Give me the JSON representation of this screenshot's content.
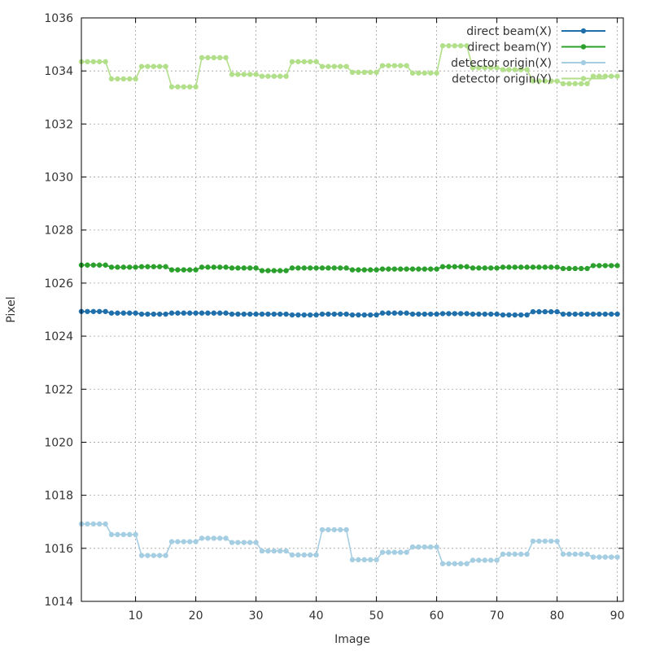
{
  "chart_data": {
    "type": "line",
    "xlabel": "Image",
    "ylabel": "Pixel",
    "xlim": [
      1,
      91
    ],
    "ylim": [
      1014,
      1036
    ],
    "x_ticks": [
      10,
      20,
      30,
      40,
      50,
      60,
      70,
      80,
      90
    ],
    "y_ticks": [
      1014,
      1016,
      1018,
      1020,
      1022,
      1024,
      1026,
      1028,
      1030,
      1032,
      1034,
      1036
    ],
    "grid": true,
    "legend_position": "top-right",
    "x": [
      1,
      2,
      3,
      4,
      5,
      6,
      7,
      8,
      9,
      10,
      11,
      12,
      13,
      14,
      15,
      16,
      17,
      18,
      19,
      20,
      21,
      22,
      23,
      24,
      25,
      26,
      27,
      28,
      29,
      30,
      31,
      32,
      33,
      34,
      35,
      36,
      37,
      38,
      39,
      40,
      41,
      42,
      43,
      44,
      45,
      46,
      47,
      48,
      49,
      50,
      51,
      52,
      53,
      54,
      55,
      56,
      57,
      58,
      59,
      60,
      61,
      62,
      63,
      64,
      65,
      66,
      67,
      68,
      69,
      70,
      71,
      72,
      73,
      74,
      75,
      76,
      77,
      78,
      79,
      80,
      81,
      82,
      83,
      84,
      85,
      86,
      87,
      88,
      89,
      90
    ],
    "series": [
      {
        "name": "direct beam(X)",
        "color": "#1f6fab",
        "values": [
          1024.93,
          1024.93,
          1024.93,
          1024.93,
          1024.93,
          1024.87,
          1024.87,
          1024.87,
          1024.87,
          1024.87,
          1024.83,
          1024.83,
          1024.83,
          1024.83,
          1024.83,
          1024.87,
          1024.87,
          1024.87,
          1024.87,
          1024.87,
          1024.87,
          1024.87,
          1024.87,
          1024.87,
          1024.87,
          1024.83,
          1024.83,
          1024.83,
          1024.83,
          1024.83,
          1024.83,
          1024.83,
          1024.83,
          1024.83,
          1024.83,
          1024.8,
          1024.8,
          1024.8,
          1024.8,
          1024.8,
          1024.83,
          1024.83,
          1024.83,
          1024.83,
          1024.83,
          1024.8,
          1024.8,
          1024.8,
          1024.8,
          1024.8,
          1024.87,
          1024.87,
          1024.87,
          1024.87,
          1024.87,
          1024.83,
          1024.83,
          1024.83,
          1024.83,
          1024.83,
          1024.85,
          1024.85,
          1024.85,
          1024.85,
          1024.85,
          1024.83,
          1024.83,
          1024.83,
          1024.83,
          1024.83,
          1024.8,
          1024.8,
          1024.8,
          1024.8,
          1024.8,
          1024.92,
          1024.92,
          1024.92,
          1024.92,
          1024.92,
          1024.83,
          1024.83,
          1024.83,
          1024.83,
          1024.83,
          1024.83,
          1024.83,
          1024.83,
          1024.83,
          1024.83
        ]
      },
      {
        "name": "direct beam(Y)",
        "color": "#2ca02c",
        "values": [
          1026.68,
          1026.68,
          1026.68,
          1026.68,
          1026.68,
          1026.6,
          1026.6,
          1026.6,
          1026.6,
          1026.6,
          1026.62,
          1026.62,
          1026.62,
          1026.62,
          1026.62,
          1026.5,
          1026.5,
          1026.5,
          1026.5,
          1026.5,
          1026.6,
          1026.6,
          1026.6,
          1026.6,
          1026.6,
          1026.57,
          1026.57,
          1026.57,
          1026.57,
          1026.57,
          1026.47,
          1026.47,
          1026.47,
          1026.47,
          1026.47,
          1026.57,
          1026.57,
          1026.57,
          1026.57,
          1026.57,
          1026.57,
          1026.57,
          1026.57,
          1026.57,
          1026.57,
          1026.5,
          1026.5,
          1026.5,
          1026.5,
          1026.5,
          1026.53,
          1026.53,
          1026.53,
          1026.53,
          1026.53,
          1026.53,
          1026.53,
          1026.53,
          1026.53,
          1026.53,
          1026.62,
          1026.62,
          1026.62,
          1026.62,
          1026.62,
          1026.57,
          1026.57,
          1026.57,
          1026.57,
          1026.57,
          1026.6,
          1026.6,
          1026.6,
          1026.6,
          1026.6,
          1026.6,
          1026.6,
          1026.6,
          1026.6,
          1026.6,
          1026.55,
          1026.55,
          1026.55,
          1026.55,
          1026.55,
          1026.66,
          1026.66,
          1026.66,
          1026.66,
          1026.66
        ]
      },
      {
        "name": "detector origin(X)",
        "color": "#a6cee3",
        "values": [
          1016.92,
          1016.92,
          1016.92,
          1016.92,
          1016.92,
          1016.52,
          1016.52,
          1016.52,
          1016.52,
          1016.52,
          1015.73,
          1015.73,
          1015.73,
          1015.73,
          1015.73,
          1016.25,
          1016.25,
          1016.25,
          1016.25,
          1016.25,
          1016.38,
          1016.38,
          1016.38,
          1016.38,
          1016.38,
          1016.22,
          1016.22,
          1016.22,
          1016.22,
          1016.22,
          1015.9,
          1015.9,
          1015.9,
          1015.9,
          1015.9,
          1015.75,
          1015.75,
          1015.75,
          1015.75,
          1015.75,
          1016.7,
          1016.7,
          1016.7,
          1016.7,
          1016.7,
          1015.57,
          1015.57,
          1015.57,
          1015.57,
          1015.57,
          1015.85,
          1015.85,
          1015.85,
          1015.85,
          1015.85,
          1016.05,
          1016.05,
          1016.05,
          1016.05,
          1016.05,
          1015.42,
          1015.42,
          1015.42,
          1015.42,
          1015.42,
          1015.55,
          1015.55,
          1015.55,
          1015.55,
          1015.55,
          1015.78,
          1015.78,
          1015.78,
          1015.78,
          1015.78,
          1016.27,
          1016.27,
          1016.27,
          1016.27,
          1016.27,
          1015.78,
          1015.78,
          1015.78,
          1015.78,
          1015.78,
          1015.67,
          1015.67,
          1015.67,
          1015.67,
          1015.67
        ]
      },
      {
        "name": "detector origin(Y)",
        "color": "#b2df8a",
        "values": [
          1034.35,
          1034.35,
          1034.35,
          1034.35,
          1034.35,
          1033.7,
          1033.7,
          1033.7,
          1033.7,
          1033.7,
          1034.17,
          1034.17,
          1034.17,
          1034.17,
          1034.17,
          1033.4,
          1033.4,
          1033.4,
          1033.4,
          1033.4,
          1034.5,
          1034.5,
          1034.5,
          1034.5,
          1034.5,
          1033.87,
          1033.87,
          1033.87,
          1033.87,
          1033.87,
          1033.8,
          1033.8,
          1033.8,
          1033.8,
          1033.8,
          1034.35,
          1034.35,
          1034.35,
          1034.35,
          1034.35,
          1034.17,
          1034.17,
          1034.17,
          1034.17,
          1034.17,
          1033.95,
          1033.95,
          1033.95,
          1033.95,
          1033.95,
          1034.2,
          1034.2,
          1034.2,
          1034.2,
          1034.2,
          1033.92,
          1033.92,
          1033.92,
          1033.92,
          1033.92,
          1034.95,
          1034.95,
          1034.95,
          1034.95,
          1034.95,
          1034.12,
          1034.12,
          1034.12,
          1034.12,
          1034.12,
          1034.05,
          1034.05,
          1034.05,
          1034.05,
          1034.05,
          1033.62,
          1033.62,
          1033.62,
          1033.62,
          1033.62,
          1033.52,
          1033.52,
          1033.52,
          1033.52,
          1033.52,
          1033.8,
          1033.8,
          1033.8,
          1033.8,
          1033.8
        ]
      }
    ]
  }
}
